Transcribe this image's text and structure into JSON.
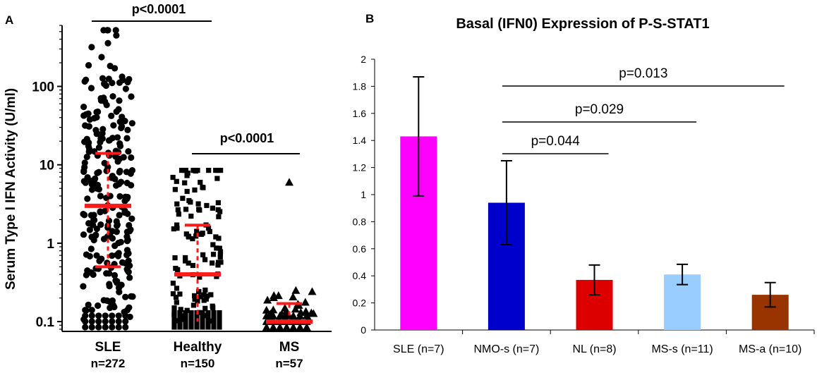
{
  "chart_data": [
    {
      "panel": "A",
      "type": "scatter",
      "title": "",
      "xlabel": "",
      "ylabel": "Serum Type I IFN Activity (U/ml)",
      "yscale": "log",
      "ylim": [
        0.075,
        600
      ],
      "yticks": [
        {
          "value": 0.1,
          "label": "0.1"
        },
        {
          "value": 1,
          "label": "1"
        },
        {
          "value": 10,
          "label": "10"
        },
        {
          "value": 100,
          "label": "100"
        }
      ],
      "groups": [
        {
          "name": "SLE",
          "n_label": "n=272",
          "marker": "circle",
          "n": 272,
          "range": [
            0.075,
            520
          ],
          "median": 3.0,
          "q1": 0.5,
          "q3": 14
        },
        {
          "name": "Healthy",
          "n_label": "n=150",
          "marker": "square",
          "n": 150,
          "range": [
            0.08,
            8.5
          ],
          "median": 0.4,
          "q1": 0.1,
          "q3": 1.7
        },
        {
          "name": "MS",
          "n_label": "n=57",
          "marker": "triangle",
          "n": 57,
          "range": [
            0.075,
            6
          ],
          "median": 0.1,
          "q1": 0.1,
          "q3": 0.17
        }
      ],
      "comparisons": [
        {
          "label": "p<0.0001",
          "from": "SLE",
          "to": "Healthy"
        },
        {
          "label": "p<0.0001",
          "from": "Healthy",
          "to": "MS"
        }
      ]
    },
    {
      "panel": "B",
      "type": "bar",
      "title": "Basal (IFN0) Expression of P-S-STAT1",
      "xlabel": "",
      "ylabel": "",
      "ylim": [
        0,
        2
      ],
      "yticks": [
        "0",
        "0.2",
        "0.4",
        "0.6",
        "0.8",
        "1",
        "1.2",
        "1.4",
        "1.6",
        "1.8",
        "2"
      ],
      "categories": [
        "SLE (n=7)",
        "NMO-s (n=7)",
        "NL (n=8)",
        "MS-s (n=11)",
        "MS-a (n=10)"
      ],
      "values": [
        1.43,
        0.94,
        0.37,
        0.41,
        0.26
      ],
      "errors": [
        0.44,
        0.31,
        0.11,
        0.075,
        0.09
      ],
      "colors": [
        "#ff00ff",
        "#0000cc",
        "#dd0000",
        "#99ccff",
        "#993300"
      ],
      "comparisons": [
        {
          "label": "p=0.044",
          "from": "NMO-s (n=7)",
          "to": "NL (n=8)"
        },
        {
          "label": "p=0.029",
          "from": "NMO-s (n=7)",
          "to": "MS-s (n=11)"
        },
        {
          "label": "p=0.013",
          "from": "NMO-s (n=7)",
          "to": "MS-a (n=10)"
        }
      ]
    }
  ],
  "panel_a_letter": "A",
  "panel_b_letter": "B"
}
